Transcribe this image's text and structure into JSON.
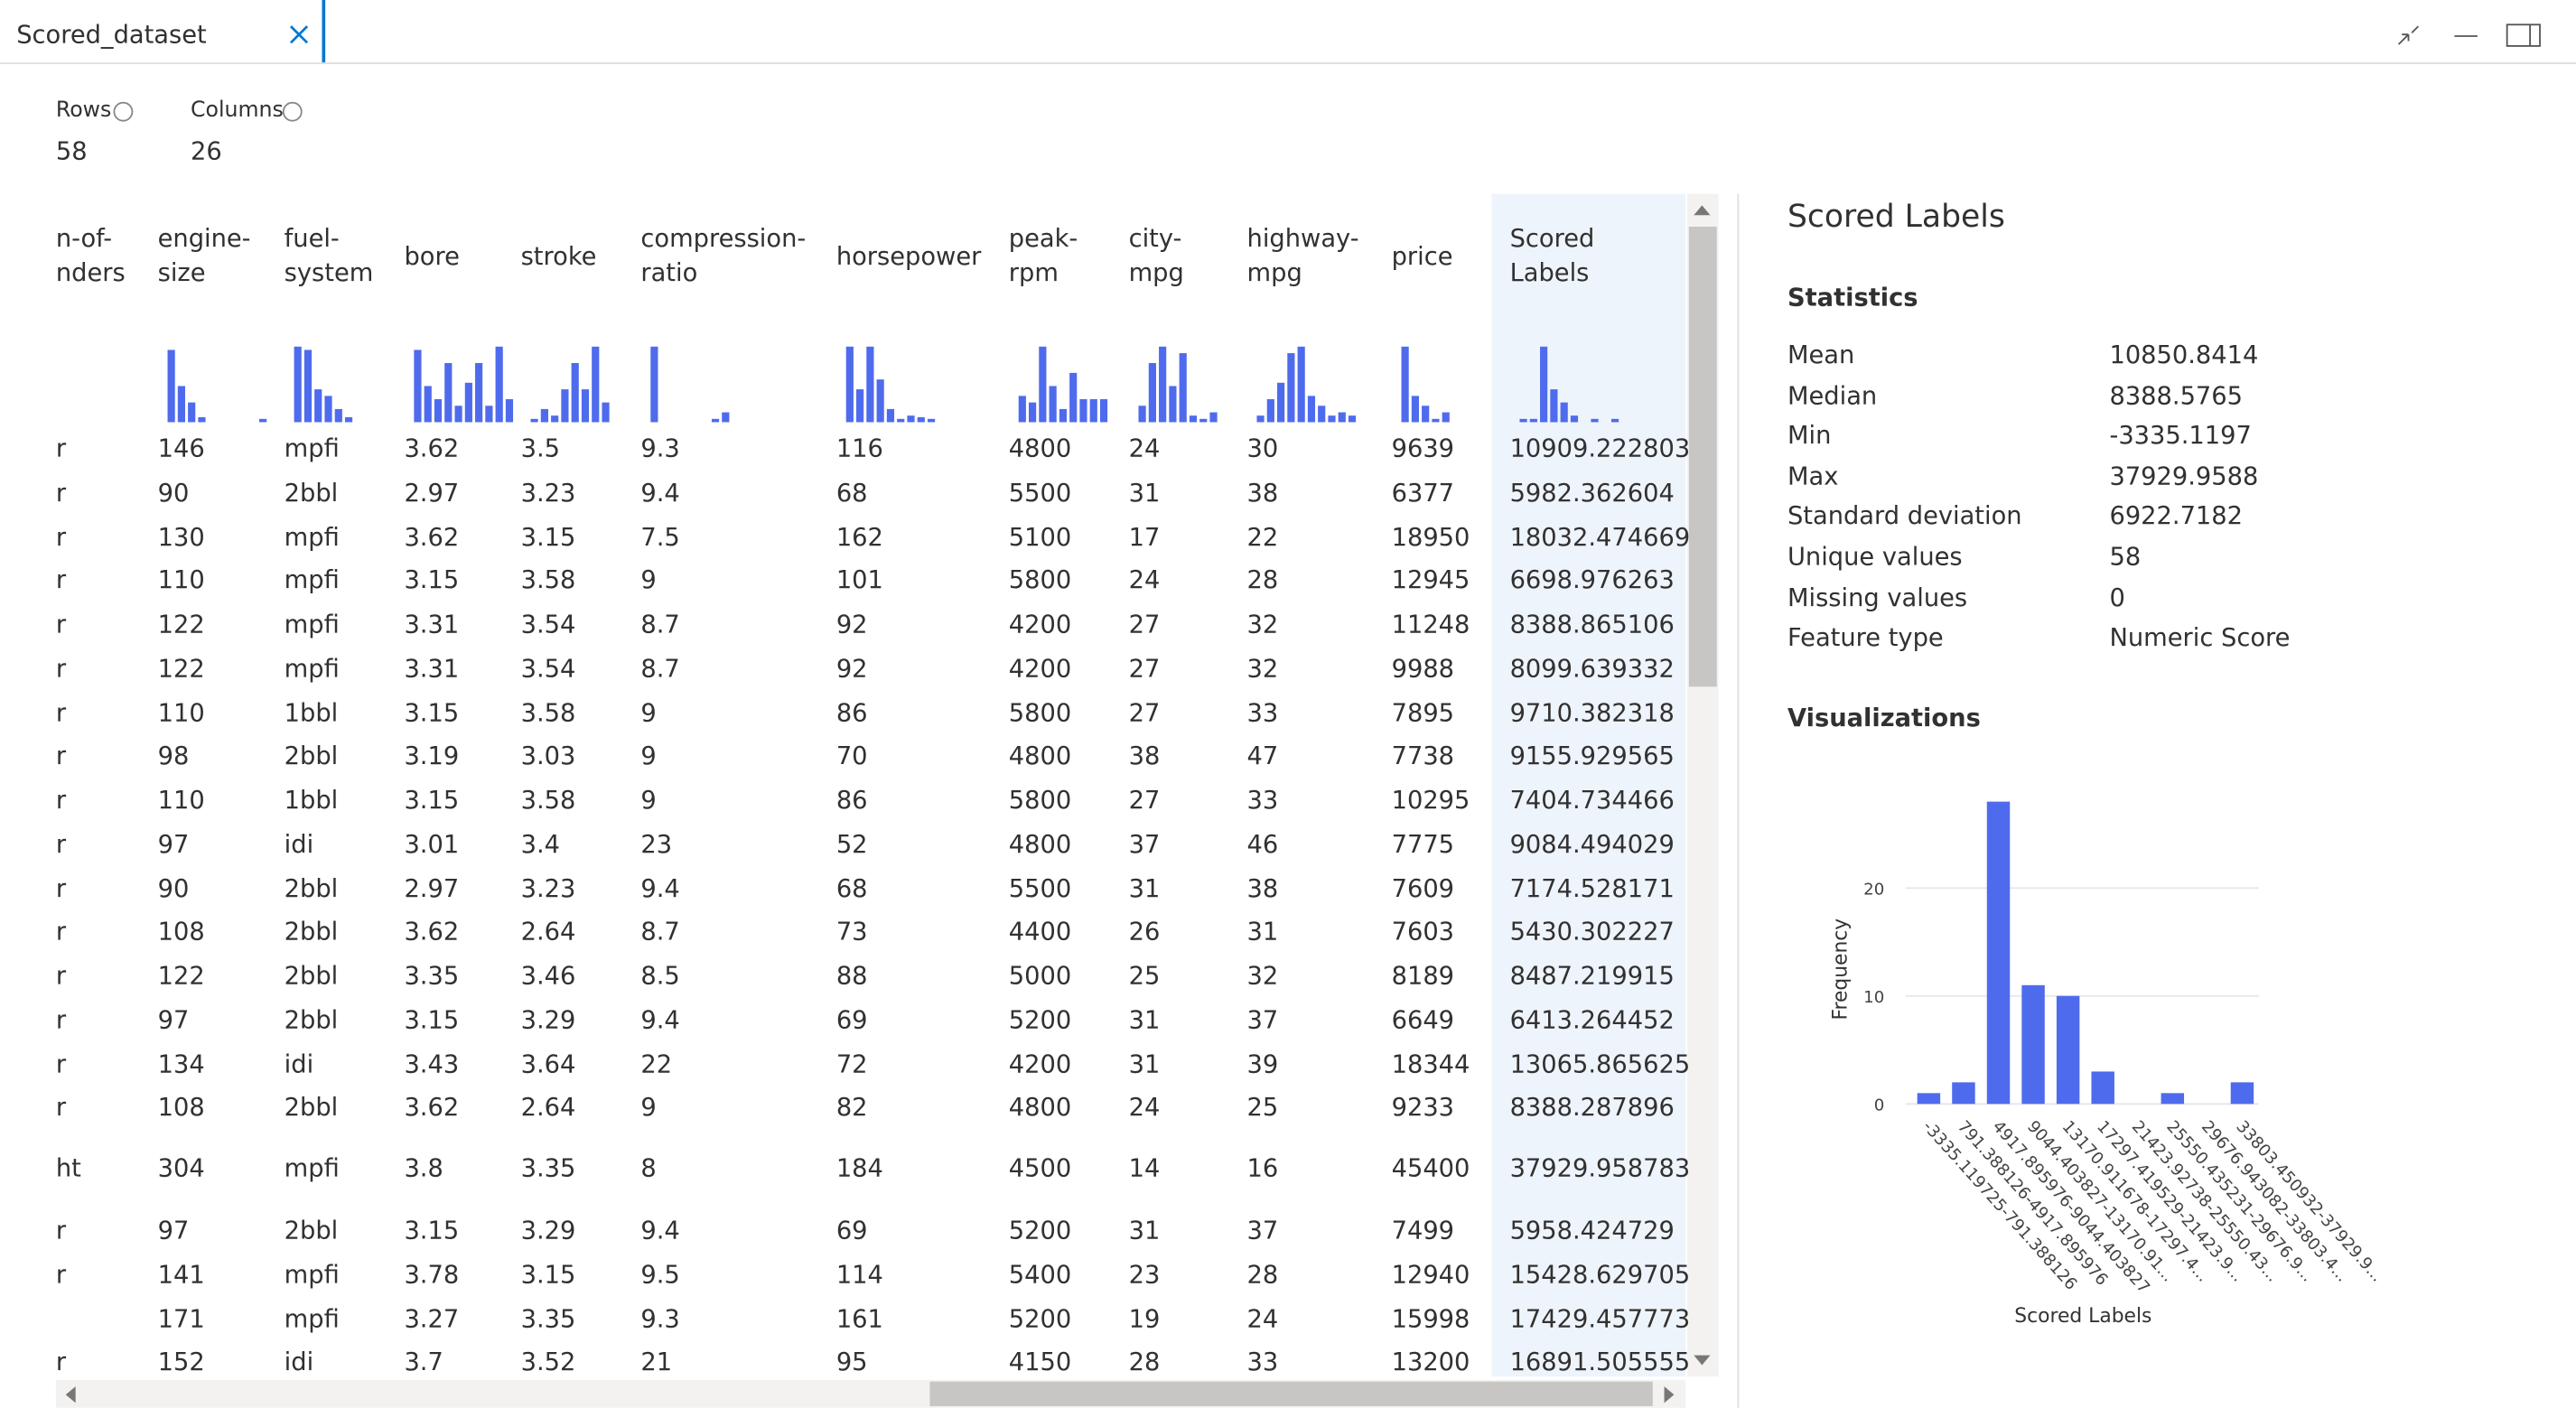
{
  "tab": {
    "title": "Scored_dataset"
  },
  "summary": {
    "rows_label": "Rows",
    "rows": 58,
    "columns_label": "Columns",
    "columns": 26
  },
  "table": {
    "columns": [
      "n-of- nders",
      "engine-size",
      "fuel-system",
      "bore",
      "stroke",
      "compression-ratio",
      "horsepower",
      "peak-rpm",
      "city-mpg",
      "highway-mpg",
      "price",
      "Scored Labels"
    ],
    "histograms": [
      null,
      [
        44,
        22,
        12,
        3,
        0,
        0,
        0,
        0,
        0,
        2
      ],
      [
        46,
        44,
        20,
        16,
        8,
        3
      ],
      [
        44,
        22,
        14,
        36,
        10,
        24,
        36,
        10,
        46,
        14
      ],
      [
        2,
        8,
        4,
        20,
        36,
        20,
        46,
        12
      ],
      [
        46,
        0,
        0,
        0,
        0,
        0,
        2,
        6
      ],
      [
        46,
        20,
        46,
        26,
        8,
        2,
        4,
        3,
        2
      ],
      [
        16,
        12,
        46,
        22,
        8,
        30,
        14,
        14,
        14
      ],
      [
        10,
        36,
        46,
        22,
        42,
        4,
        2,
        6
      ],
      [
        4,
        14,
        24,
        42,
        46,
        16,
        10,
        4,
        6,
        4
      ],
      [
        46,
        16,
        10,
        2,
        6
      ],
      [
        2,
        2,
        46,
        20,
        12,
        4,
        0,
        2,
        0,
        2
      ]
    ],
    "rows": [
      [
        "r",
        146,
        "mpfi",
        3.62,
        3.5,
        9.3,
        116,
        4800,
        24,
        30,
        9639,
        10909.222803
      ],
      [
        "r",
        90,
        "2bbl",
        2.97,
        3.23,
        9.4,
        68,
        5500,
        31,
        38,
        6377,
        5982.362604
      ],
      [
        "r",
        130,
        "mpfi",
        3.62,
        3.15,
        7.5,
        162,
        5100,
        17,
        22,
        18950,
        18032.474669
      ],
      [
        "r",
        110,
        "mpfi",
        3.15,
        3.58,
        9,
        101,
        5800,
        24,
        28,
        12945,
        6698.976263
      ],
      [
        "r",
        122,
        "mpfi",
        3.31,
        3.54,
        8.7,
        92,
        4200,
        27,
        32,
        11248,
        8388.865106
      ],
      [
        "r",
        122,
        "mpfi",
        3.31,
        3.54,
        8.7,
        92,
        4200,
        27,
        32,
        9988,
        8099.639332
      ],
      [
        "r",
        110,
        "1bbl",
        3.15,
        3.58,
        9,
        86,
        5800,
        27,
        33,
        7895,
        9710.382318
      ],
      [
        "r",
        98,
        "2bbl",
        3.19,
        3.03,
        9,
        70,
        4800,
        38,
        47,
        7738,
        9155.929565
      ],
      [
        "r",
        110,
        "1bbl",
        3.15,
        3.58,
        9,
        86,
        5800,
        27,
        33,
        10295,
        7404.734466
      ],
      [
        "r",
        97,
        "idi",
        3.01,
        3.4,
        23,
        52,
        4800,
        37,
        46,
        7775,
        9084.494029
      ],
      [
        "r",
        90,
        "2bbl",
        2.97,
        3.23,
        9.4,
        68,
        5500,
        31,
        38,
        7609,
        7174.528171
      ],
      [
        "r",
        108,
        "2bbl",
        3.62,
        2.64,
        8.7,
        73,
        4400,
        26,
        31,
        7603,
        5430.302227
      ],
      [
        "r",
        122,
        "2bbl",
        3.35,
        3.46,
        8.5,
        88,
        5000,
        25,
        32,
        8189,
        8487.219915
      ],
      [
        "r",
        97,
        "2bbl",
        3.15,
        3.29,
        9.4,
        69,
        5200,
        31,
        37,
        6649,
        6413.264452
      ],
      [
        "r",
        134,
        "idi",
        3.43,
        3.64,
        22,
        72,
        4200,
        31,
        39,
        18344,
        13065.865625
      ],
      [
        "r",
        108,
        "2bbl",
        3.62,
        2.64,
        9,
        82,
        4800,
        24,
        25,
        9233,
        8388.287896
      ],
      [
        "ht",
        304,
        "mpfi",
        3.8,
        3.35,
        8,
        184,
        4500,
        14,
        16,
        45400,
        37929.958783
      ],
      [
        "r",
        97,
        "2bbl",
        3.15,
        3.29,
        9.4,
        69,
        5200,
        31,
        37,
        7499,
        5958.424729
      ],
      [
        "r",
        141,
        "mpfi",
        3.78,
        3.15,
        9.5,
        114,
        5400,
        23,
        28,
        12940,
        15428.629705
      ],
      [
        null,
        171,
        "mpfi",
        3.27,
        3.35,
        9.3,
        161,
        5200,
        19,
        24,
        15998,
        17429.457773
      ],
      [
        "r",
        152,
        "idi",
        3.7,
        3.52,
        21,
        95,
        4150,
        28,
        33,
        13200,
        16891.505555
      ]
    ]
  },
  "panel": {
    "title": "Scored Labels",
    "statistics_heading": "Statistics",
    "statistics": [
      [
        "Mean",
        10850.8414
      ],
      [
        "Median",
        8388.5765
      ],
      [
        "Min",
        -3335.1197
      ],
      [
        "Max",
        37929.9588
      ],
      [
        "Standard deviation",
        6922.7182
      ],
      [
        "Unique values",
        58
      ],
      [
        "Missing values",
        0
      ],
      [
        "Feature type",
        "Numeric Score"
      ]
    ],
    "visualizations_heading": "Visualizations"
  },
  "chart_data": {
    "type": "bar",
    "x_label": "Scored Labels",
    "y_label": "Frequency",
    "categories": [
      "-3335.119725-791.388126",
      "791.388126-4917.895976",
      "4917.895976-9044.403827",
      "9044.403827-13170.91...",
      "13170.911678-17297.4...",
      "17297.419529-21423.9...",
      "21423.92738-25550.43...",
      "25550.435231-29676.9...",
      "29676.943082-33803.4...",
      "33803.450932-37929.9..."
    ],
    "values": [
      1,
      2,
      28,
      11,
      10,
      3,
      0,
      1,
      0,
      2
    ],
    "color": "#4f6bed",
    "ylim": [
      0,
      28
    ],
    "yticks": [
      0,
      10,
      20
    ],
    "grid": true
  }
}
